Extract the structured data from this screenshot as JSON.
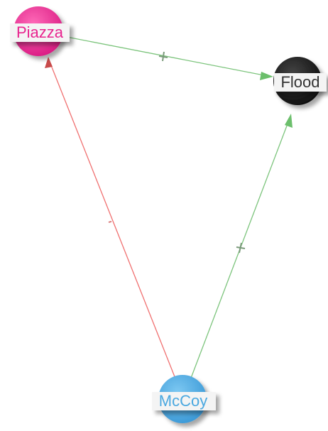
{
  "graph": {
    "nodes": [
      {
        "id": "piazza",
        "label": "Piazza",
        "color": "#e8248f",
        "label_color": "#e8248f"
      },
      {
        "id": "flood",
        "label": "Flood",
        "color": "#1a1a1a",
        "label_color": "#333333"
      },
      {
        "id": "mccoy",
        "label": "McCoy",
        "color": "#4aa8e0",
        "label_color": "#4aa8e0"
      }
    ],
    "edges": [
      {
        "from": "piazza",
        "to": "flood",
        "sign": "+",
        "color": "#7cc47c"
      },
      {
        "from": "mccoy",
        "to": "flood",
        "sign": "+",
        "color": "#7cc47c"
      },
      {
        "from": "mccoy",
        "to": "piazza",
        "sign": "-",
        "color": "#f07070"
      }
    ]
  }
}
